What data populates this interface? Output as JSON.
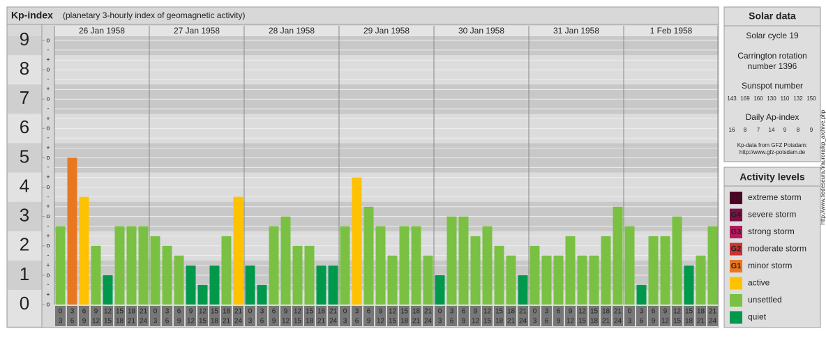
{
  "chart_data": {
    "type": "bar",
    "title": "Kp-index",
    "subtitle": "(planetary 3-hourly index of geomagnetic activity)",
    "ylim": [
      0,
      9
    ],
    "yticks": [
      0,
      1,
      2,
      3,
      4,
      5,
      6,
      7,
      8,
      9
    ],
    "minor_ticks": [
      {
        "value": 0,
        "label": "o"
      },
      {
        "value": 0.33,
        "label": "+"
      },
      {
        "value": 0.67,
        "label": "-"
      },
      {
        "value": 1,
        "label": "o"
      },
      {
        "value": 1.33,
        "label": "+"
      },
      {
        "value": 1.67,
        "label": "-"
      },
      {
        "value": 2,
        "label": "o"
      },
      {
        "value": 2.33,
        "label": "+"
      },
      {
        "value": 2.67,
        "label": "-"
      },
      {
        "value": 3,
        "label": "o"
      },
      {
        "value": 3.33,
        "label": "+"
      },
      {
        "value": 3.67,
        "label": "-"
      },
      {
        "value": 4,
        "label": "o"
      },
      {
        "value": 4.33,
        "label": "+"
      },
      {
        "value": 4.67,
        "label": "-"
      },
      {
        "value": 5,
        "label": "o"
      },
      {
        "value": 5.33,
        "label": "+"
      },
      {
        "value": 5.67,
        "label": "-"
      },
      {
        "value": 6,
        "label": "o"
      },
      {
        "value": 6.33,
        "label": "+"
      },
      {
        "value": 6.67,
        "label": "-"
      },
      {
        "value": 7,
        "label": "o"
      },
      {
        "value": 7.33,
        "label": "+"
      },
      {
        "value": 7.67,
        "label": "-"
      },
      {
        "value": 8,
        "label": "o"
      },
      {
        "value": 8.33,
        "label": "+"
      },
      {
        "value": 8.67,
        "label": "-"
      },
      {
        "value": 9,
        "label": "o"
      }
    ],
    "hour_labels": [
      [
        "0",
        "3"
      ],
      [
        "3",
        "6"
      ],
      [
        "6",
        "9"
      ],
      [
        "9",
        "12"
      ],
      [
        "12",
        "15"
      ],
      [
        "15",
        "18"
      ],
      [
        "18",
        "21"
      ],
      [
        "21",
        "24"
      ]
    ],
    "days": [
      {
        "label": "26 Jan 1958",
        "values": [
          2.67,
          5,
          3.67,
          2,
          1,
          2.67,
          2.67,
          2.67
        ],
        "colors": [
          "#7ac143",
          "#e8771f",
          "#ffc200",
          "#7ac143",
          "#00994c",
          "#7ac143",
          "#7ac143",
          "#7ac143"
        ]
      },
      {
        "label": "27 Jan 1958",
        "values": [
          2.33,
          2,
          1.67,
          1.33,
          0.67,
          1.33,
          2.33,
          3.67
        ],
        "colors": [
          "#7ac143",
          "#7ac143",
          "#7ac143",
          "#00994c",
          "#00994c",
          "#00994c",
          "#7ac143",
          "#ffc200"
        ]
      },
      {
        "label": "28 Jan 1958",
        "values": [
          1.33,
          0.67,
          2.67,
          3,
          2,
          2,
          1.33,
          1.33
        ],
        "colors": [
          "#00994c",
          "#00994c",
          "#7ac143",
          "#7ac143",
          "#7ac143",
          "#7ac143",
          "#00994c",
          "#00994c"
        ]
      },
      {
        "label": "29 Jan 1958",
        "values": [
          2.67,
          4.33,
          3.33,
          2.67,
          1.67,
          2.67,
          2.67,
          1.67
        ],
        "colors": [
          "#7ac143",
          "#ffc200",
          "#7ac143",
          "#7ac143",
          "#7ac143",
          "#7ac143",
          "#7ac143",
          "#7ac143"
        ]
      },
      {
        "label": "30 Jan 1958",
        "values": [
          1,
          3,
          3,
          2.33,
          2.67,
          2,
          1.67,
          1
        ],
        "colors": [
          "#00994c",
          "#7ac143",
          "#7ac143",
          "#7ac143",
          "#7ac143",
          "#7ac143",
          "#7ac143",
          "#00994c"
        ]
      },
      {
        "label": "31 Jan 1958",
        "values": [
          2,
          1.67,
          1.67,
          2.33,
          1.67,
          1.67,
          2.33,
          3.33
        ],
        "colors": [
          "#7ac143",
          "#7ac143",
          "#7ac143",
          "#7ac143",
          "#7ac143",
          "#7ac143",
          "#7ac143",
          "#7ac143"
        ]
      },
      {
        "label": "1 Feb 1958",
        "values": [
          2.67,
          0.67,
          2.33,
          2.33,
          3,
          1.33,
          1.67,
          2.67
        ],
        "colors": [
          "#7ac143",
          "#00994c",
          "#7ac143",
          "#7ac143",
          "#7ac143",
          "#00994c",
          "#7ac143",
          "#7ac143"
        ]
      }
    ]
  },
  "solar_data": {
    "title": "Solar data",
    "cycle": "Solar cycle 19",
    "carrington": [
      "Carrington rotation",
      "number 1396"
    ],
    "sunspot_title": "Sunspot number",
    "sunspot": [
      143,
      169,
      160,
      130,
      110,
      132,
      150
    ],
    "ap_title": "Daily Ap-index",
    "ap": [
      16,
      8,
      7,
      14,
      9,
      8,
      9
    ],
    "source": [
      "Kp-data from GFZ Potsdam:",
      "http://www.gfz-potsdam.de"
    ]
  },
  "activity_levels": {
    "title": "Activity levels",
    "items": [
      {
        "badge": "G5",
        "label": "extreme storm",
        "color": "#4d0026"
      },
      {
        "badge": "G4",
        "label": "severe storm",
        "color": "#7a1043"
      },
      {
        "badge": "G3",
        "label": "strong storm",
        "color": "#b5195f"
      },
      {
        "badge": "G2",
        "label": "moderate storm",
        "color": "#cc3333"
      },
      {
        "badge": "G1",
        "label": "minor storm",
        "color": "#e8771f"
      },
      {
        "label": "active",
        "color": "#ffc200"
      },
      {
        "label": "unsettled",
        "color": "#7ac143"
      },
      {
        "label": "quiet",
        "color": "#00994c"
      }
    ]
  },
  "side_text": "http://www.tiedeseura.fi/aurora/kp_archive.php"
}
